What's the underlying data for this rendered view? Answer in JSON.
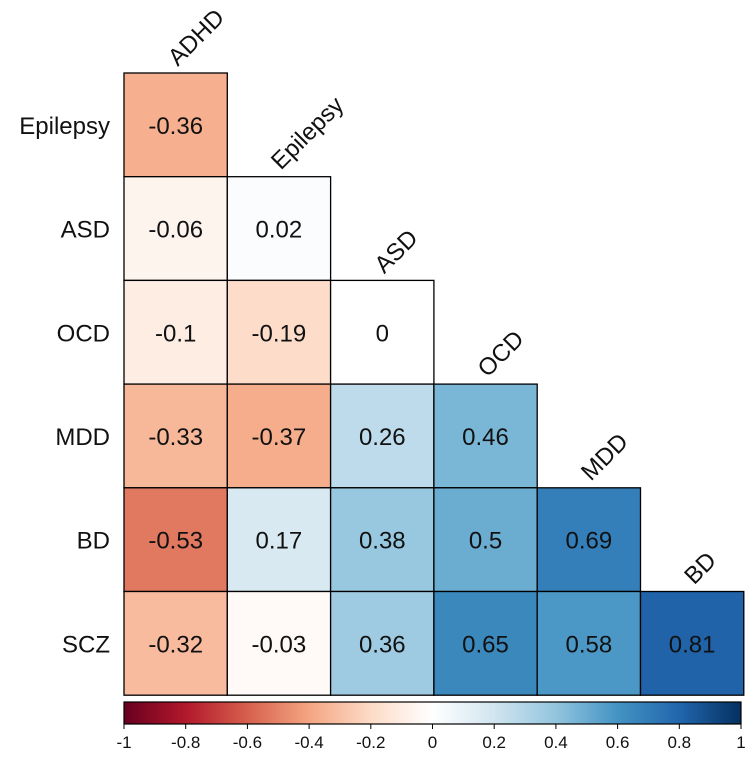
{
  "chart_data": {
    "type": "heatmap",
    "title": "",
    "variables": [
      "ADHD",
      "Epilepsy",
      "ASD",
      "OCD",
      "MDD",
      "BD",
      "SCZ"
    ],
    "row_labels": [
      "Epilepsy",
      "ASD",
      "OCD",
      "MDD",
      "BD",
      "SCZ"
    ],
    "column_labels": [
      "ADHD",
      "Epilepsy",
      "ASD",
      "OCD",
      "MDD",
      "BD"
    ],
    "layout": "lower-triangle",
    "values": [
      [
        -0.36
      ],
      [
        -0.06,
        0.02
      ],
      [
        -0.1,
        -0.19,
        0
      ],
      [
        -0.33,
        -0.37,
        0.26,
        0.46
      ],
      [
        -0.53,
        0.17,
        0.38,
        0.5,
        0.69
      ],
      [
        -0.32,
        -0.03,
        0.36,
        0.65,
        0.58,
        0.81
      ]
    ],
    "value_labels": [
      [
        "-0.36"
      ],
      [
        "-0.06",
        "0.02"
      ],
      [
        "-0.1",
        "-0.19",
        "0"
      ],
      [
        "-0.33",
        "-0.37",
        "0.26",
        "0.46"
      ],
      [
        "-0.53",
        "0.17",
        "0.38",
        "0.5",
        "0.69"
      ],
      [
        "-0.32",
        "-0.03",
        "0.36",
        "0.65",
        "0.58",
        "0.81"
      ]
    ],
    "colorbar": {
      "range": [
        -1,
        1
      ],
      "ticks": [
        "-1",
        "-0.8",
        "-0.6",
        "-0.4",
        "-0.2",
        "0",
        "0.2",
        "0.4",
        "0.6",
        "0.8",
        "1"
      ],
      "placement": "bottom",
      "colors": {
        "neg_end": "#67001f",
        "mid_1": "#b2182b",
        "mid_2": "#d6604d",
        "mid_3": "#f4a582",
        "mid_4": "#fddbc7",
        "center": "#ffffff",
        "mid_5": "#d1e5f0",
        "mid_6": "#92c5de",
        "mid_7": "#4393c3",
        "mid_8": "#2166ac",
        "pos_end": "#053061"
      }
    }
  }
}
